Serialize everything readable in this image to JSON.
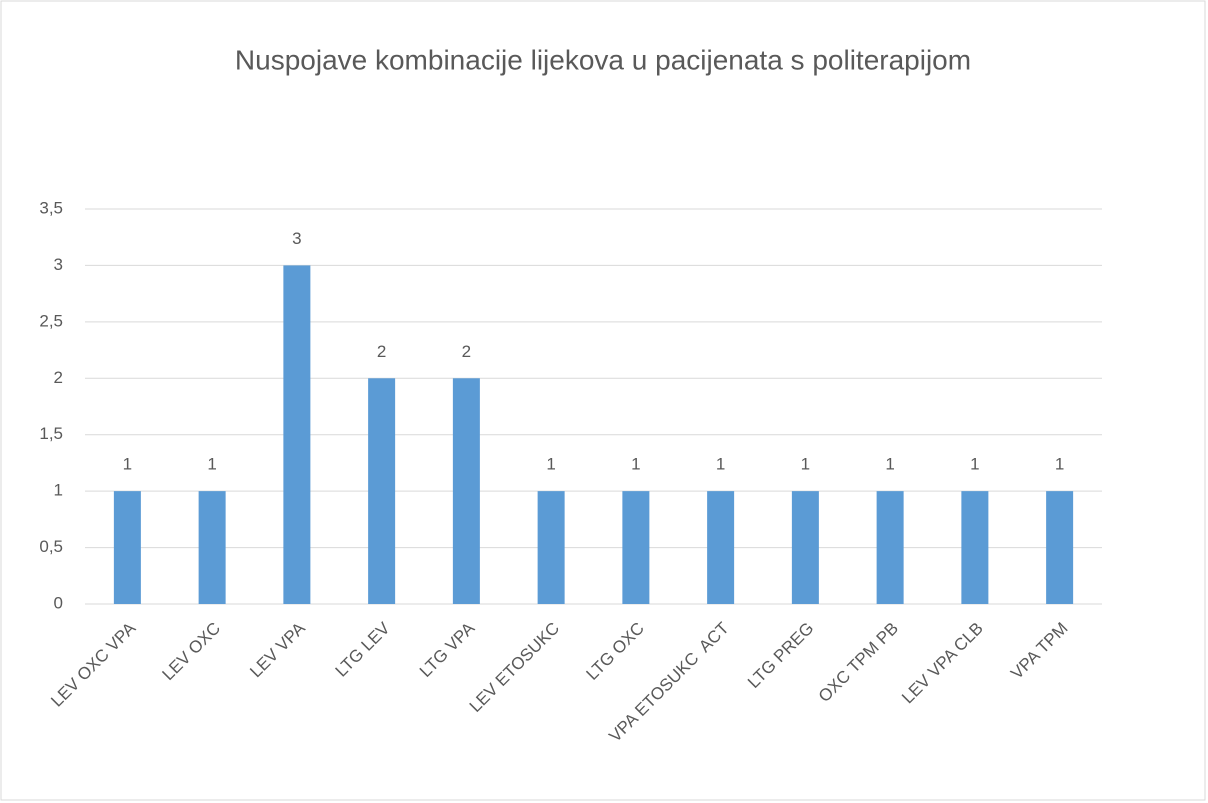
{
  "chart_data": {
    "type": "bar",
    "title": "Nuspojave kombinacije lijekova u pacijenata s politerapijom",
    "categories": [
      "LEV OXC VPA",
      "LEV OXC",
      "LEV VPA",
      "LTG LEV",
      "LTG VPA",
      "LEV ETOSUKC",
      "LTG OXC",
      "VPA ETOSUKC  ACT",
      "LTG PREG",
      "OXC TPM PB",
      "LEV VPA CLB",
      "VPA TPM"
    ],
    "values": [
      1,
      1,
      3,
      2,
      2,
      1,
      1,
      1,
      1,
      1,
      1,
      1
    ],
    "color": "#5b9bd5",
    "ylim": [
      0,
      3.5
    ],
    "yticks": [
      0,
      {
        "value": 0.5,
        "label": "0,5"
      },
      1,
      {
        "value": 1.5,
        "label": "1,5"
      },
      2,
      {
        "value": 2.5,
        "label": "2,5"
      },
      3,
      {
        "value": 3.5,
        "label": "3,5"
      }
    ],
    "grid": true,
    "data_labels": true
  }
}
